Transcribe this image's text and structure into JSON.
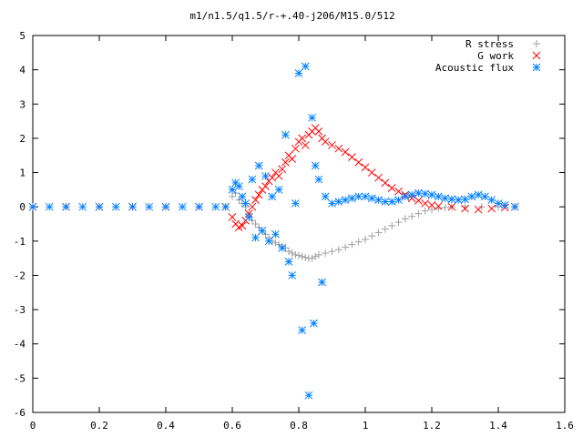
{
  "chart_data": {
    "type": "scatter",
    "title": "m1/n1.5/q1.5/r-+.40-j206/M15.0/512",
    "xlabel": "",
    "ylabel": "",
    "xlim": [
      0,
      1.6
    ],
    "ylim": [
      -6,
      5
    ],
    "x_ticks": [
      "0",
      "0.2",
      "0.4",
      "0.6",
      "0.8",
      "1",
      "1.2",
      "1.4",
      "1.6"
    ],
    "y_ticks": [
      "5",
      "4",
      "3",
      "2",
      "1",
      "0",
      "-1",
      "-2",
      "-3",
      "-4",
      "-5",
      "-6"
    ],
    "grid": false,
    "legend_position": "top-right",
    "series": [
      {
        "name": "R stress",
        "marker": "plus",
        "color": "#a0a0a0",
        "points": [
          [
            0.0,
            0.0
          ],
          [
            0.1,
            0.0
          ],
          [
            0.2,
            0.0
          ],
          [
            0.3,
            0.0
          ],
          [
            0.4,
            0.0
          ],
          [
            0.5,
            0.0
          ],
          [
            0.58,
            0.0
          ],
          [
            0.6,
            0.3
          ],
          [
            0.61,
            0.4
          ],
          [
            0.62,
            0.2
          ],
          [
            0.63,
            0.1
          ],
          [
            0.64,
            0.0
          ],
          [
            0.65,
            -0.2
          ],
          [
            0.66,
            -0.4
          ],
          [
            0.67,
            -0.5
          ],
          [
            0.68,
            -0.6
          ],
          [
            0.69,
            -0.7
          ],
          [
            0.7,
            -0.8
          ],
          [
            0.71,
            -0.9
          ],
          [
            0.72,
            -1.0
          ],
          [
            0.73,
            -1.05
          ],
          [
            0.74,
            -1.1
          ],
          [
            0.75,
            -1.15
          ],
          [
            0.76,
            -1.2
          ],
          [
            0.77,
            -1.3
          ],
          [
            0.78,
            -1.35
          ],
          [
            0.79,
            -1.4
          ],
          [
            0.8,
            -1.42
          ],
          [
            0.81,
            -1.45
          ],
          [
            0.82,
            -1.48
          ],
          [
            0.83,
            -1.5
          ],
          [
            0.84,
            -1.5
          ],
          [
            0.85,
            -1.45
          ],
          [
            0.86,
            -1.4
          ],
          [
            0.88,
            -1.35
          ],
          [
            0.9,
            -1.3
          ],
          [
            0.92,
            -1.25
          ],
          [
            0.94,
            -1.18
          ],
          [
            0.96,
            -1.1
          ],
          [
            0.98,
            -1.02
          ],
          [
            1.0,
            -0.95
          ],
          [
            1.02,
            -0.85
          ],
          [
            1.04,
            -0.75
          ],
          [
            1.06,
            -0.65
          ],
          [
            1.08,
            -0.55
          ],
          [
            1.1,
            -0.45
          ],
          [
            1.12,
            -0.35
          ],
          [
            1.14,
            -0.28
          ],
          [
            1.16,
            -0.2
          ],
          [
            1.18,
            -0.12
          ],
          [
            1.2,
            -0.08
          ],
          [
            1.22,
            -0.05
          ],
          [
            1.24,
            -0.02
          ],
          [
            1.26,
            0.0
          ],
          [
            1.3,
            0.0
          ],
          [
            1.35,
            0.0
          ],
          [
            1.4,
            0.0
          ],
          [
            1.45,
            0.0
          ]
        ]
      },
      {
        "name": "G work",
        "marker": "cross",
        "color": "#ff0000",
        "points": [
          [
            0.0,
            0.0
          ],
          [
            0.1,
            0.0
          ],
          [
            0.2,
            0.0
          ],
          [
            0.3,
            0.0
          ],
          [
            0.4,
            0.0
          ],
          [
            0.5,
            0.0
          ],
          [
            0.58,
            0.0
          ],
          [
            0.6,
            -0.3
          ],
          [
            0.61,
            -0.5
          ],
          [
            0.62,
            -0.6
          ],
          [
            0.63,
            -0.55
          ],
          [
            0.64,
            -0.4
          ],
          [
            0.65,
            -0.2
          ],
          [
            0.66,
            0.0
          ],
          [
            0.67,
            0.2
          ],
          [
            0.68,
            0.35
          ],
          [
            0.69,
            0.5
          ],
          [
            0.7,
            0.6
          ],
          [
            0.71,
            0.75
          ],
          [
            0.72,
            0.85
          ],
          [
            0.73,
            1.0
          ],
          [
            0.74,
            0.9
          ],
          [
            0.75,
            1.1
          ],
          [
            0.76,
            1.3
          ],
          [
            0.77,
            1.5
          ],
          [
            0.78,
            1.4
          ],
          [
            0.79,
            1.7
          ],
          [
            0.8,
            1.9
          ],
          [
            0.81,
            2.0
          ],
          [
            0.82,
            1.8
          ],
          [
            0.83,
            2.1
          ],
          [
            0.84,
            2.2
          ],
          [
            0.85,
            2.3
          ],
          [
            0.86,
            2.2
          ],
          [
            0.87,
            2.0
          ],
          [
            0.88,
            1.9
          ],
          [
            0.9,
            1.8
          ],
          [
            0.92,
            1.7
          ],
          [
            0.94,
            1.6
          ],
          [
            0.96,
            1.45
          ],
          [
            0.98,
            1.3
          ],
          [
            1.0,
            1.15
          ],
          [
            1.02,
            1.0
          ],
          [
            1.04,
            0.85
          ],
          [
            1.06,
            0.7
          ],
          [
            1.08,
            0.55
          ],
          [
            1.1,
            0.45
          ],
          [
            1.12,
            0.35
          ],
          [
            1.14,
            0.25
          ],
          [
            1.16,
            0.18
          ],
          [
            1.18,
            0.1
          ],
          [
            1.2,
            0.05
          ],
          [
            1.22,
            0.02
          ],
          [
            1.26,
            0.0
          ],
          [
            1.3,
            -0.05
          ],
          [
            1.34,
            -0.08
          ],
          [
            1.38,
            -0.05
          ],
          [
            1.42,
            -0.02
          ],
          [
            1.45,
            0.0
          ]
        ]
      },
      {
        "name": "Acoustic flux",
        "marker": "star",
        "color": "#0080ff",
        "points": [
          [
            0.0,
            0.0
          ],
          [
            0.05,
            0.0
          ],
          [
            0.1,
            0.0
          ],
          [
            0.15,
            0.0
          ],
          [
            0.2,
            0.0
          ],
          [
            0.25,
            0.0
          ],
          [
            0.3,
            0.0
          ],
          [
            0.35,
            0.0
          ],
          [
            0.4,
            0.0
          ],
          [
            0.45,
            0.0
          ],
          [
            0.5,
            0.0
          ],
          [
            0.55,
            0.0
          ],
          [
            0.58,
            0.0
          ],
          [
            0.6,
            0.5
          ],
          [
            0.61,
            0.7
          ],
          [
            0.62,
            0.6
          ],
          [
            0.63,
            0.3
          ],
          [
            0.64,
            0.1
          ],
          [
            0.65,
            -0.3
          ],
          [
            0.66,
            0.8
          ],
          [
            0.67,
            -0.9
          ],
          [
            0.68,
            1.2
          ],
          [
            0.69,
            -0.7
          ],
          [
            0.7,
            0.9
          ],
          [
            0.71,
            -1.0
          ],
          [
            0.72,
            0.3
          ],
          [
            0.73,
            -0.8
          ],
          [
            0.74,
            0.5
          ],
          [
            0.75,
            -1.2
          ],
          [
            0.76,
            2.1
          ],
          [
            0.77,
            -1.6
          ],
          [
            0.78,
            -2.0
          ],
          [
            0.79,
            0.1
          ],
          [
            0.8,
            3.9
          ],
          [
            0.81,
            -3.6
          ],
          [
            0.82,
            4.1
          ],
          [
            0.83,
            -5.5
          ],
          [
            0.84,
            2.6
          ],
          [
            0.845,
            -3.4
          ],
          [
            0.85,
            1.2
          ],
          [
            0.86,
            0.8
          ],
          [
            0.87,
            -2.2
          ],
          [
            0.88,
            0.3
          ],
          [
            0.9,
            0.1
          ],
          [
            0.92,
            0.15
          ],
          [
            0.94,
            0.2
          ],
          [
            0.96,
            0.25
          ],
          [
            0.98,
            0.3
          ],
          [
            1.0,
            0.3
          ],
          [
            1.02,
            0.25
          ],
          [
            1.04,
            0.2
          ],
          [
            1.06,
            0.15
          ],
          [
            1.08,
            0.15
          ],
          [
            1.1,
            0.2
          ],
          [
            1.12,
            0.3
          ],
          [
            1.14,
            0.35
          ],
          [
            1.16,
            0.4
          ],
          [
            1.18,
            0.38
          ],
          [
            1.2,
            0.35
          ],
          [
            1.22,
            0.3
          ],
          [
            1.24,
            0.25
          ],
          [
            1.26,
            0.22
          ],
          [
            1.28,
            0.2
          ],
          [
            1.3,
            0.22
          ],
          [
            1.32,
            0.3
          ],
          [
            1.34,
            0.35
          ],
          [
            1.36,
            0.3
          ],
          [
            1.38,
            0.2
          ],
          [
            1.4,
            0.1
          ],
          [
            1.42,
            0.05
          ],
          [
            1.45,
            0.0
          ]
        ]
      }
    ]
  }
}
